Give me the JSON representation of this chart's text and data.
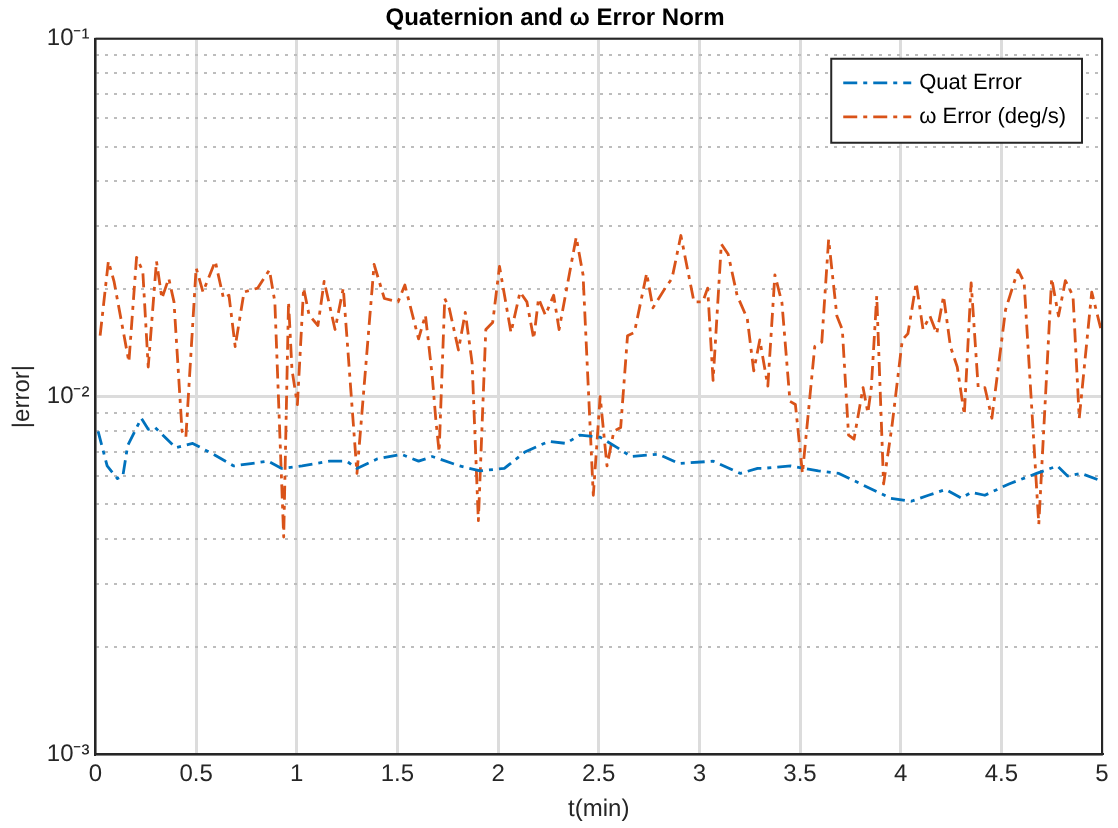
{
  "chart_data": {
    "type": "line",
    "title": "Quaternion and ω Error Norm",
    "xlabel": "t(min)",
    "ylabel": "|error|",
    "xlim": [
      0,
      5
    ],
    "xticks": [
      0,
      0.5,
      1,
      1.5,
      2,
      2.5,
      3,
      3.5,
      4,
      4.5,
      5
    ],
    "ylim": [
      0.001,
      0.1
    ],
    "log": true,
    "yticks": [
      {
        "value": 0.001,
        "label": "10⁻³"
      },
      {
        "value": 0.002,
        "label": null
      },
      {
        "value": 0.003,
        "label": null
      },
      {
        "value": 0.004,
        "label": null
      },
      {
        "value": 0.005,
        "label": null
      },
      {
        "value": 0.006,
        "label": null
      },
      {
        "value": 0.007,
        "label": null
      },
      {
        "value": 0.008,
        "label": null
      },
      {
        "value": 0.009,
        "label": null
      },
      {
        "value": 0.01,
        "label": "10⁻²"
      },
      {
        "value": 0.02,
        "label": null
      },
      {
        "value": 0.03,
        "label": null
      },
      {
        "value": 0.04,
        "label": null
      },
      {
        "value": 0.05,
        "label": null
      },
      {
        "value": 0.06,
        "label": null
      },
      {
        "value": 0.07,
        "label": null
      },
      {
        "value": 0.08,
        "label": null
      },
      {
        "value": 0.09,
        "label": null
      },
      {
        "value": 0.1,
        "label": "10⁻¹"
      }
    ],
    "grid": true,
    "legend": "top right",
    "line_style": "dashed",
    "marker": "none",
    "series": [
      {
        "name": "Quat Error",
        "color": "#0072bd",
        "x": [
          0.013,
          0.058,
          0.109,
          0.136,
          0.16,
          0.228,
          0.262,
          0.296,
          0.398,
          0.483,
          0.585,
          0.687,
          0.772,
          0.857,
          0.925,
          1.027,
          1.163,
          1.248,
          1.299,
          1.401,
          1.52,
          1.605,
          1.673,
          1.707,
          1.809,
          1.911,
          2.031,
          2.133,
          2.252,
          2.337,
          2.405,
          2.507,
          2.592,
          2.66,
          2.796,
          2.898,
          3.068,
          3.204,
          3.289,
          3.316,
          3.454,
          3.591,
          3.693,
          3.83,
          3.95,
          4.052,
          4.138,
          4.223,
          4.302,
          4.35,
          4.418,
          4.538,
          4.675,
          4.778,
          4.829,
          4.897,
          5.0
        ],
        "values": [
          0.008,
          0.0064,
          0.0059,
          0.006,
          0.0073,
          0.0087,
          0.0081,
          0.0082,
          0.0072,
          0.0074,
          0.0069,
          0.0064,
          0.0065,
          0.0066,
          0.0063,
          0.0064,
          0.0066,
          0.0066,
          0.0063,
          0.0067,
          0.0069,
          0.0066,
          0.0068,
          0.0067,
          0.0064,
          0.0062,
          0.0063,
          0.007,
          0.0075,
          0.0074,
          0.0078,
          0.0077,
          0.0072,
          0.0068,
          0.0069,
          0.0065,
          0.0066,
          0.0061,
          0.0063,
          0.0063,
          0.0064,
          0.0062,
          0.0061,
          0.0056,
          0.0052,
          0.0051,
          0.0053,
          0.0055,
          0.0052,
          0.0054,
          0.0053,
          0.0057,
          0.0061,
          0.0064,
          0.006,
          0.0061,
          0.0058
        ]
      },
      {
        "name": "ω Error (deg/s)",
        "color": "#d95319",
        "x": [
          0.023,
          0.064,
          0.092,
          0.166,
          0.204,
          0.235,
          0.262,
          0.303,
          0.33,
          0.364,
          0.39,
          0.43,
          0.449,
          0.5,
          0.534,
          0.595,
          0.636,
          0.663,
          0.694,
          0.738,
          0.806,
          0.864,
          0.891,
          0.935,
          0.959,
          0.976,
          1.003,
          1.034,
          1.061,
          1.105,
          1.136,
          1.19,
          1.231,
          1.299,
          1.384,
          1.435,
          1.503,
          1.537,
          1.605,
          1.639,
          1.673,
          1.69,
          1.707,
          1.735,
          1.758,
          1.803,
          1.837,
          1.871,
          1.902,
          1.939,
          1.973,
          2.007,
          2.064,
          2.109,
          2.143,
          2.177,
          2.201,
          2.235,
          2.276,
          2.303,
          2.388,
          2.422,
          2.473,
          2.507,
          2.541,
          2.575,
          2.609,
          2.643,
          2.677,
          2.738,
          2.769,
          2.83,
          2.864,
          2.908,
          2.973,
          3.017,
          3.041,
          3.068,
          3.109,
          3.143,
          3.187,
          3.238,
          3.27,
          3.3,
          3.34,
          3.375,
          3.41,
          3.45,
          3.477,
          3.512,
          3.573,
          3.608,
          3.642,
          3.683,
          3.71,
          3.741,
          3.768,
          3.813,
          3.837,
          3.854,
          3.881,
          3.915,
          3.957,
          4.008,
          4.036,
          4.077,
          4.111,
          4.145,
          4.179,
          4.213,
          4.247,
          4.281,
          4.316,
          4.35,
          4.385,
          4.418,
          4.453,
          4.521,
          4.583,
          4.613,
          4.686,
          4.75,
          4.784,
          4.818,
          4.856,
          4.887,
          4.949,
          5.0
        ],
        "values": [
          0.0148,
          0.0239,
          0.021,
          0.0125,
          0.0245,
          0.0224,
          0.0121,
          0.0239,
          0.0188,
          0.0214,
          0.0184,
          0.008,
          0.0077,
          0.0229,
          0.0196,
          0.0239,
          0.0188,
          0.0192,
          0.0138,
          0.0196,
          0.0201,
          0.0226,
          0.0184,
          0.00405,
          0.0184,
          0.0119,
          0.0095,
          0.0201,
          0.0169,
          0.0158,
          0.021,
          0.0154,
          0.0201,
          0.0061,
          0.0234,
          0.0188,
          0.0184,
          0.0205,
          0.0145,
          0.0169,
          0.0114,
          0.0087,
          0.007,
          0.0188,
          0.0176,
          0.0135,
          0.0172,
          0.0124,
          0.0045,
          0.0154,
          0.0161,
          0.0231,
          0.0151,
          0.0196,
          0.0184,
          0.0145,
          0.0188,
          0.0169,
          0.0192,
          0.0154,
          0.0279,
          0.0219,
          0.0053,
          0.01,
          0.0064,
          0.008,
          0.0082,
          0.0148,
          0.0151,
          0.0221,
          0.0177,
          0.0201,
          0.0214,
          0.0282,
          0.0184,
          0.0184,
          0.0201,
          0.0111,
          0.0267,
          0.025,
          0.0192,
          0.0165,
          0.0118,
          0.0144,
          0.0107,
          0.0219,
          0.0183,
          0.0097,
          0.0095,
          0.0061,
          0.0138,
          0.0142,
          0.0275,
          0.0168,
          0.0154,
          0.0078,
          0.0076,
          0.0106,
          0.009,
          0.0106,
          0.0191,
          0.0057,
          0.0083,
          0.0144,
          0.015,
          0.0208,
          0.0154,
          0.0168,
          0.015,
          0.0191,
          0.0138,
          0.0121,
          0.0089,
          0.0208,
          0.0106,
          0.0106,
          0.0087,
          0.0175,
          0.0226,
          0.0209,
          0.0044,
          0.0214,
          0.0168,
          0.0211,
          0.0191,
          0.0087,
          0.0196,
          0.015
        ]
      }
    ]
  }
}
